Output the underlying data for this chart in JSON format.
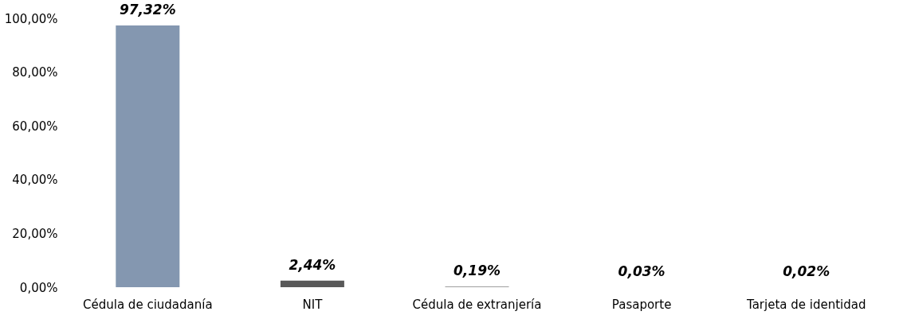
{
  "chart_data": {
    "type": "bar",
    "categories": [
      "Cédula de ciudadanía",
      "NIT",
      "Cédula de extranjería",
      "Pasaporte",
      "Tarjeta de identidad"
    ],
    "values": [
      97.32,
      2.44,
      0.19,
      0.03,
      0.02
    ],
    "colors": [
      "#8497b0",
      "#595959",
      "#7f7f7f",
      "#a6a6a6",
      "#bfbfbf"
    ],
    "value_labels": [
      "97,32%",
      "2,44%",
      "0,19%",
      "0,03%",
      "0,02%"
    ],
    "ylim": [
      0,
      100
    ],
    "yticks": [
      {
        "value": 0,
        "label": "0,00%"
      },
      {
        "value": 20,
        "label": "20,00%"
      },
      {
        "value": 40,
        "label": "40,00%"
      },
      {
        "value": 60,
        "label": "60,00%"
      },
      {
        "value": 80,
        "label": "80,00%"
      },
      {
        "value": 100,
        "label": "100,00%"
      }
    ],
    "grid": false
  }
}
